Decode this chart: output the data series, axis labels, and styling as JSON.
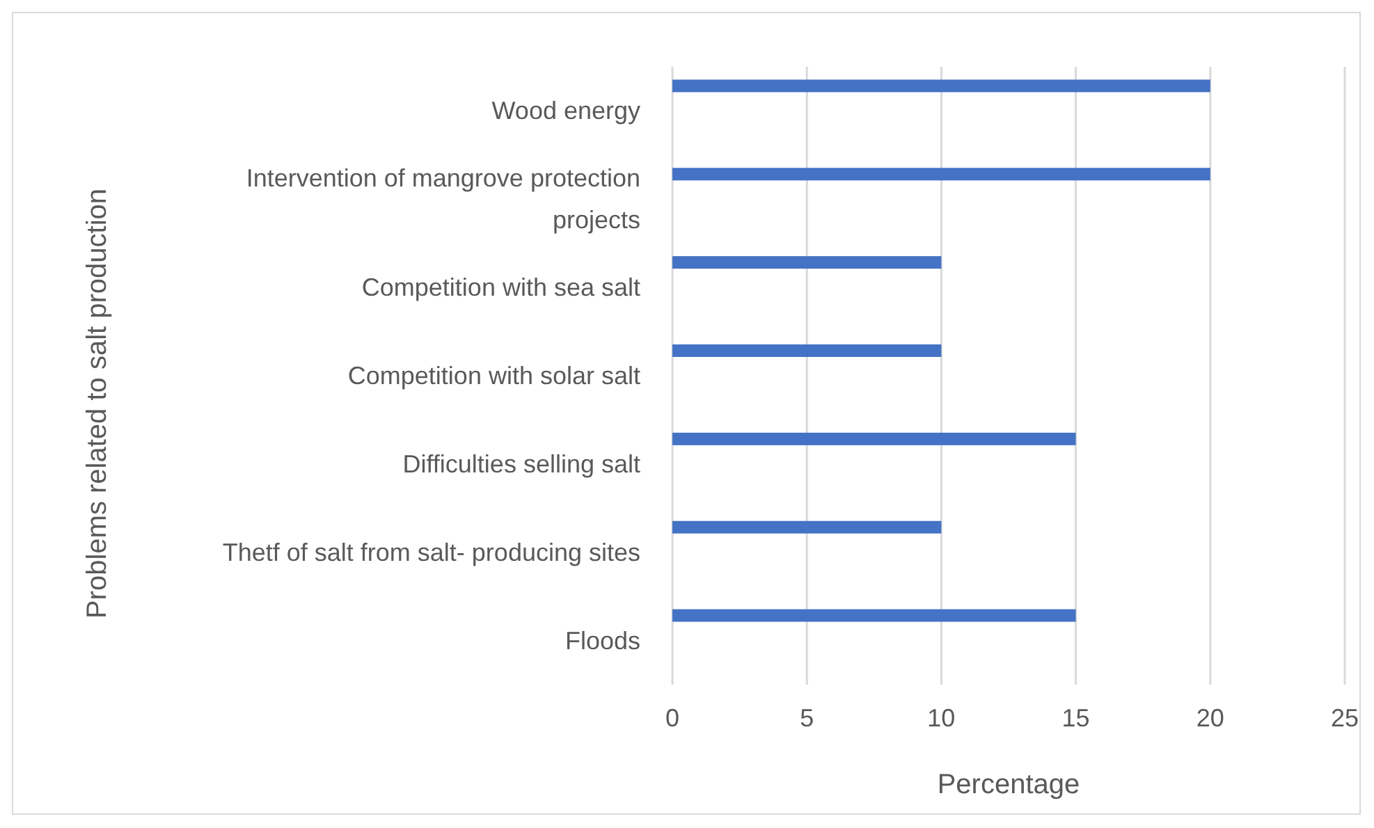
{
  "chart_data": {
    "type": "bar",
    "orientation": "horizontal",
    "xlabel": "Percentage",
    "ylabel": "Problems related to salt production",
    "categories": [
      "Wood energy",
      "Intervention of mangrove protection projects",
      "Competition with sea salt",
      "Competition with solar salt",
      "Difficulties selling salt",
      "Thetf of salt from salt- producing sites",
      "Floods"
    ],
    "values": [
      20,
      20,
      10,
      10,
      15,
      10,
      15
    ],
    "color": "#4472c4",
    "xlim": [
      0,
      25
    ],
    "xticks": [
      0,
      5,
      10,
      15,
      20,
      25
    ],
    "grid": "x"
  }
}
